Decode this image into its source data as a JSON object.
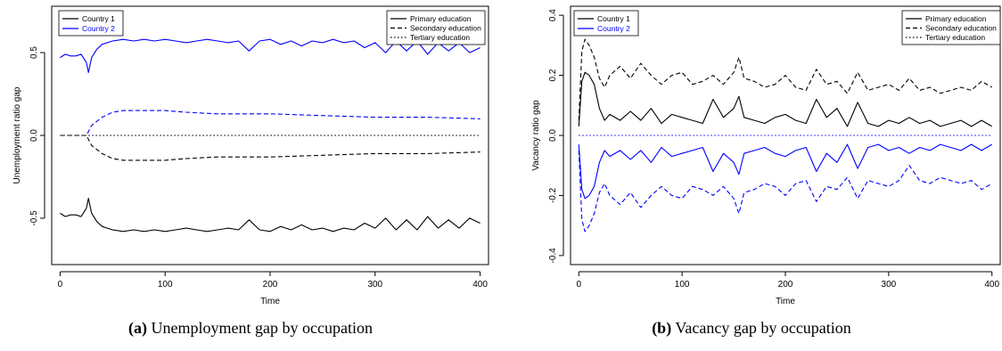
{
  "captions": [
    {
      "tag": "(a)",
      "text": "Unemployment gap by occupation"
    },
    {
      "tag": "(b)",
      "text": "Vacancy gap by occupation"
    }
  ],
  "colors": {
    "country1": "#000000",
    "country2": "#0000ff"
  },
  "chart_data": [
    {
      "type": "line",
      "xlabel": "Time",
      "ylabel": "Unemployment ratio gap",
      "xlim": [
        -8,
        408
      ],
      "ylim": [
        -0.78,
        0.78
      ],
      "xticks": [
        "0",
        "100",
        "200",
        "300",
        "400"
      ],
      "yticks": [
        "-0.5",
        "0.0",
        "0.5"
      ],
      "legend_countries": [
        "Country 1",
        "Country 2"
      ],
      "legend_education": [
        "Primary education",
        "Secondary education",
        "Tertiary education"
      ],
      "series": [
        {
          "name": "Country 2, Primary education",
          "color": "blue",
          "dash": "solid",
          "x": [
            0,
            5,
            10,
            15,
            20,
            25,
            27,
            30,
            35,
            40,
            50,
            60,
            70,
            80,
            90,
            100,
            110,
            120,
            130,
            140,
            150,
            160,
            170,
            180,
            190,
            200,
            210,
            220,
            230,
            240,
            250,
            260,
            270,
            280,
            290,
            300,
            310,
            320,
            330,
            340,
            350,
            360,
            370,
            380,
            390,
            400
          ],
          "y": [
            0.47,
            0.49,
            0.48,
            0.48,
            0.49,
            0.44,
            0.38,
            0.47,
            0.52,
            0.55,
            0.57,
            0.58,
            0.57,
            0.58,
            0.57,
            0.58,
            0.57,
            0.56,
            0.57,
            0.58,
            0.57,
            0.56,
            0.57,
            0.51,
            0.57,
            0.58,
            0.55,
            0.57,
            0.54,
            0.57,
            0.56,
            0.58,
            0.56,
            0.57,
            0.53,
            0.56,
            0.5,
            0.57,
            0.51,
            0.57,
            0.49,
            0.56,
            0.51,
            0.56,
            0.5,
            0.53
          ]
        },
        {
          "name": "Country 1, Primary education",
          "color": "black",
          "dash": "solid",
          "x": [
            0,
            5,
            10,
            15,
            20,
            25,
            27,
            30,
            35,
            40,
            50,
            60,
            70,
            80,
            90,
            100,
            110,
            120,
            130,
            140,
            150,
            160,
            170,
            180,
            190,
            200,
            210,
            220,
            230,
            240,
            250,
            260,
            270,
            280,
            290,
            300,
            310,
            320,
            330,
            340,
            350,
            360,
            370,
            380,
            390,
            400
          ],
          "y": [
            -0.47,
            -0.49,
            -0.48,
            -0.48,
            -0.49,
            -0.44,
            -0.38,
            -0.47,
            -0.52,
            -0.55,
            -0.57,
            -0.58,
            -0.57,
            -0.58,
            -0.57,
            -0.58,
            -0.57,
            -0.56,
            -0.57,
            -0.58,
            -0.57,
            -0.56,
            -0.57,
            -0.51,
            -0.57,
            -0.58,
            -0.55,
            -0.57,
            -0.54,
            -0.57,
            -0.56,
            -0.58,
            -0.56,
            -0.57,
            -0.53,
            -0.56,
            -0.5,
            -0.57,
            -0.51,
            -0.57,
            -0.49,
            -0.56,
            -0.51,
            -0.56,
            -0.5,
            -0.53
          ]
        },
        {
          "name": "Country 2, Secondary education",
          "color": "blue",
          "dash": "dashed",
          "x": [
            0,
            25,
            30,
            40,
            50,
            60,
            80,
            100,
            120,
            150,
            200,
            250,
            300,
            350,
            400
          ],
          "y": [
            0.0,
            0.0,
            0.06,
            0.11,
            0.14,
            0.15,
            0.15,
            0.15,
            0.14,
            0.13,
            0.13,
            0.12,
            0.11,
            0.11,
            0.1
          ]
        },
        {
          "name": "Country 1, Secondary education",
          "color": "black",
          "dash": "dashed",
          "x": [
            0,
            25,
            30,
            40,
            50,
            60,
            80,
            100,
            120,
            150,
            200,
            250,
            300,
            350,
            400
          ],
          "y": [
            0.0,
            0.0,
            -0.06,
            -0.11,
            -0.14,
            -0.15,
            -0.15,
            -0.15,
            -0.14,
            -0.13,
            -0.13,
            -0.12,
            -0.11,
            -0.11,
            -0.1
          ]
        },
        {
          "name": "Country 2, Tertiary education",
          "color": "blue",
          "dash": "dotted",
          "x": [
            0,
            400
          ],
          "y": [
            0.0,
            0.0
          ]
        },
        {
          "name": "Country 1, Tertiary education",
          "color": "black",
          "dash": "dotted",
          "x": [
            0,
            400
          ],
          "y": [
            0.0,
            0.0
          ]
        }
      ]
    },
    {
      "type": "line",
      "xlabel": "Time",
      "ylabel": "Vacancy ratio gap",
      "xlim": [
        -8,
        408
      ],
      "ylim": [
        -0.43,
        0.43
      ],
      "xticks": [
        "0",
        "100",
        "200",
        "300",
        "400"
      ],
      "yticks": [
        "-0.4",
        "-0.2",
        "0.0",
        "0.2",
        "0.4"
      ],
      "legend_countries": [
        "Country 1",
        "Country 2"
      ],
      "legend_education": [
        "Primary education",
        "Secondary education",
        "Tertiary education"
      ],
      "series": [
        {
          "name": "Country 1, Secondary education",
          "color": "black",
          "dash": "dashed",
          "x": [
            0,
            3,
            6,
            10,
            15,
            20,
            25,
            30,
            40,
            50,
            60,
            70,
            80,
            90,
            100,
            110,
            120,
            130,
            140,
            150,
            155,
            160,
            170,
            180,
            190,
            200,
            210,
            220,
            230,
            240,
            250,
            260,
            270,
            280,
            290,
            300,
            310,
            320,
            330,
            340,
            350,
            360,
            370,
            380,
            390,
            400
          ],
          "y": [
            0.05,
            0.28,
            0.32,
            0.3,
            0.26,
            0.19,
            0.16,
            0.2,
            0.23,
            0.19,
            0.24,
            0.2,
            0.17,
            0.2,
            0.21,
            0.17,
            0.18,
            0.2,
            0.17,
            0.21,
            0.26,
            0.19,
            0.18,
            0.16,
            0.17,
            0.2,
            0.16,
            0.15,
            0.22,
            0.17,
            0.18,
            0.14,
            0.21,
            0.15,
            0.16,
            0.17,
            0.15,
            0.19,
            0.15,
            0.16,
            0.14,
            0.15,
            0.16,
            0.15,
            0.18,
            0.16
          ]
        },
        {
          "name": "Country 1, Primary education",
          "color": "black",
          "dash": "solid",
          "x": [
            0,
            3,
            6,
            10,
            15,
            20,
            25,
            30,
            40,
            50,
            60,
            70,
            80,
            90,
            100,
            110,
            120,
            130,
            140,
            150,
            155,
            160,
            170,
            180,
            190,
            200,
            210,
            220,
            230,
            240,
            250,
            260,
            270,
            280,
            290,
            300,
            310,
            320,
            330,
            340,
            350,
            360,
            370,
            380,
            390,
            400
          ],
          "y": [
            0.03,
            0.18,
            0.21,
            0.2,
            0.17,
            0.09,
            0.05,
            0.07,
            0.05,
            0.08,
            0.05,
            0.09,
            0.04,
            0.07,
            0.06,
            0.05,
            0.04,
            0.12,
            0.06,
            0.09,
            0.13,
            0.06,
            0.05,
            0.04,
            0.06,
            0.07,
            0.05,
            0.04,
            0.12,
            0.06,
            0.09,
            0.03,
            0.11,
            0.04,
            0.03,
            0.05,
            0.04,
            0.06,
            0.04,
            0.05,
            0.03,
            0.04,
            0.05,
            0.03,
            0.05,
            0.03
          ]
        },
        {
          "name": "Country 1/2, Tertiary education",
          "color": "blue",
          "dash": "dotted",
          "x": [
            0,
            400
          ],
          "y": [
            0.0,
            0.0
          ]
        },
        {
          "name": "Country 2, Primary education",
          "color": "blue",
          "dash": "solid",
          "x": [
            0,
            3,
            6,
            10,
            15,
            20,
            25,
            30,
            40,
            50,
            60,
            70,
            80,
            90,
            100,
            110,
            120,
            130,
            140,
            150,
            155,
            160,
            170,
            180,
            190,
            200,
            210,
            220,
            230,
            240,
            250,
            260,
            270,
            280,
            290,
            300,
            310,
            320,
            330,
            340,
            350,
            360,
            370,
            380,
            390,
            400
          ],
          "y": [
            -0.03,
            -0.18,
            -0.21,
            -0.2,
            -0.17,
            -0.09,
            -0.05,
            -0.07,
            -0.05,
            -0.08,
            -0.05,
            -0.09,
            -0.04,
            -0.07,
            -0.06,
            -0.05,
            -0.04,
            -0.12,
            -0.06,
            -0.09,
            -0.13,
            -0.06,
            -0.05,
            -0.04,
            -0.06,
            -0.07,
            -0.05,
            -0.04,
            -0.12,
            -0.06,
            -0.09,
            -0.03,
            -0.11,
            -0.04,
            -0.03,
            -0.05,
            -0.04,
            -0.06,
            -0.04,
            -0.05,
            -0.03,
            -0.04,
            -0.05,
            -0.03,
            -0.05,
            -0.03
          ]
        },
        {
          "name": "Country 2, Secondary education",
          "color": "blue",
          "dash": "dashed",
          "x": [
            0,
            3,
            6,
            10,
            15,
            20,
            25,
            30,
            40,
            50,
            60,
            70,
            80,
            90,
            100,
            110,
            120,
            130,
            140,
            150,
            155,
            160,
            170,
            180,
            190,
            200,
            210,
            220,
            230,
            240,
            250,
            260,
            270,
            280,
            290,
            300,
            310,
            320,
            330,
            340,
            350,
            360,
            370,
            380,
            390,
            400
          ],
          "y": [
            -0.05,
            -0.28,
            -0.32,
            -0.3,
            -0.26,
            -0.19,
            -0.16,
            -0.2,
            -0.23,
            -0.19,
            -0.24,
            -0.2,
            -0.17,
            -0.2,
            -0.21,
            -0.17,
            -0.18,
            -0.2,
            -0.17,
            -0.21,
            -0.26,
            -0.19,
            -0.18,
            -0.16,
            -0.17,
            -0.2,
            -0.16,
            -0.15,
            -0.22,
            -0.17,
            -0.18,
            -0.14,
            -0.21,
            -0.15,
            -0.16,
            -0.17,
            -0.15,
            -0.1,
            -0.15,
            -0.16,
            -0.14,
            -0.15,
            -0.16,
            -0.15,
            -0.18,
            -0.16
          ]
        }
      ]
    }
  ]
}
